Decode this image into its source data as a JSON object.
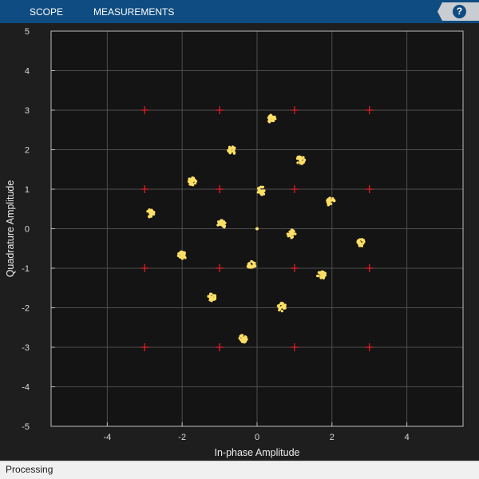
{
  "toolbar": {
    "tabs": [
      {
        "label": "SCOPE"
      },
      {
        "label": "MEASUREMENTS"
      }
    ],
    "help_icon": "?"
  },
  "chart_data": {
    "type": "scatter",
    "xlabel": "In-phase Amplitude",
    "ylabel": "Quadrature Amplitude",
    "xlim": [
      -5.5,
      5.5
    ],
    "ylim": [
      -5,
      5
    ],
    "xticks": [
      -4,
      -2,
      0,
      2,
      4
    ],
    "yticks": [
      -5,
      -4,
      -3,
      -2,
      -1,
      0,
      1,
      2,
      3,
      4,
      5
    ],
    "grid": true,
    "background": "#141414",
    "series": [
      {
        "marker": "plus",
        "color": "#e8202a",
        "points": [
          [
            -3,
            3
          ],
          [
            -1,
            3
          ],
          [
            1,
            3
          ],
          [
            3,
            3
          ],
          [
            -3,
            1
          ],
          [
            -1,
            1
          ],
          [
            1,
            1
          ],
          [
            3,
            1
          ],
          [
            -3,
            -1
          ],
          [
            -1,
            -1
          ],
          [
            1,
            -1
          ],
          [
            3,
            -1
          ],
          [
            -3,
            -3
          ],
          [
            -1,
            -3
          ],
          [
            1,
            -3
          ],
          [
            3,
            -3
          ]
        ]
      },
      {
        "marker": "cluster",
        "color": "#ffe066",
        "points": [
          [
            0.38,
            2.78
          ],
          [
            -0.68,
            1.98
          ],
          [
            1.16,
            1.74
          ],
          [
            -1.74,
            1.19
          ],
          [
            0.12,
            0.96
          ],
          [
            1.96,
            0.68
          ],
          [
            -2.84,
            0.39
          ],
          [
            -0.95,
            0.11
          ],
          [
            0.92,
            -0.13
          ],
          [
            2.78,
            -0.36
          ],
          [
            -2.0,
            -0.68
          ],
          [
            -0.15,
            -0.93
          ],
          [
            1.72,
            -1.17
          ],
          [
            -1.2,
            -1.74
          ],
          [
            0.66,
            -1.98
          ],
          [
            -0.38,
            -2.78
          ]
        ]
      },
      {
        "marker": "dot",
        "color": "#ffe066",
        "points": [
          [
            0,
            0
          ]
        ]
      }
    ]
  },
  "status": {
    "text": "Processing"
  }
}
